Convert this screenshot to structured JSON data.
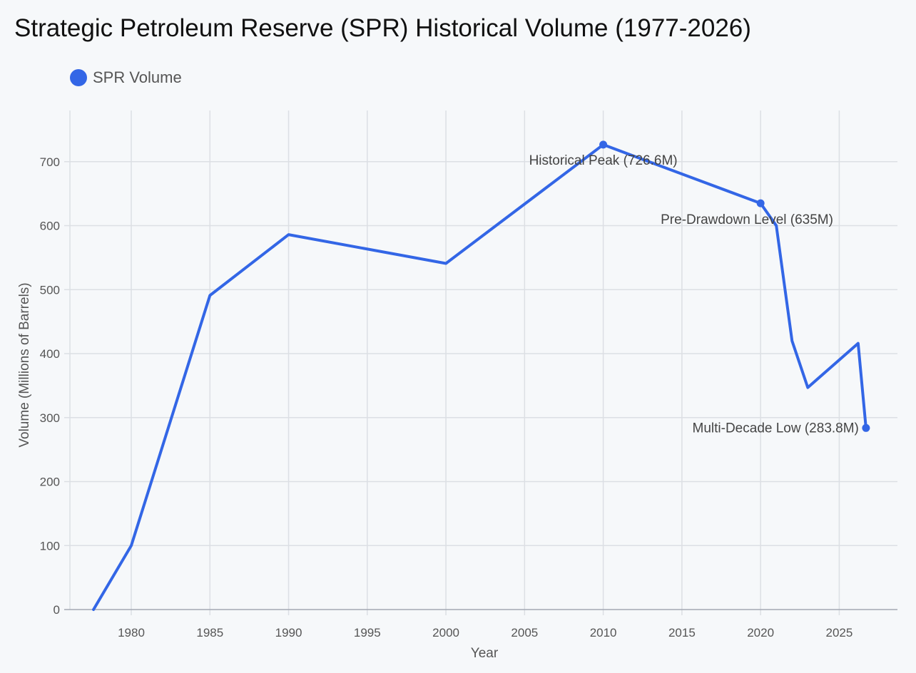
{
  "chart_data": {
    "type": "line",
    "title": "Strategic Petroleum Reserve (SPR) Historical Volume (1977-2026)",
    "xlabel": "Year",
    "ylabel": "Volume (Millions of Barrels)",
    "xlim": [
      1976.1,
      2028.7
    ],
    "ylim": [
      0,
      780
    ],
    "xticks": [
      1980,
      1985,
      1990,
      1995,
      2000,
      2005,
      2010,
      2015,
      2020,
      2025
    ],
    "yticks": [
      0,
      100,
      200,
      300,
      400,
      500,
      600,
      700
    ],
    "grid": true,
    "legend_position": "top-left",
    "series": [
      {
        "name": "SPR Volume",
        "color": "#3366e6",
        "x": [
          1977.6,
          1980,
          1985,
          1990,
          2000,
          2010,
          2020,
          2021,
          2022,
          2023,
          2026.2,
          2026.7
        ],
        "values": [
          0,
          100,
          491,
          586,
          541,
          726.6,
          635,
          600,
          420,
          347,
          416,
          283.8
        ]
      }
    ],
    "annotations": [
      {
        "x": 2010,
        "y": 726.6,
        "text": "Historical Peak (726.6M)",
        "anchor": "middle"
      },
      {
        "x": 2020,
        "y": 635,
        "text": "Pre-Drawdown Level (635M)",
        "anchor": "start"
      },
      {
        "x": 2026.7,
        "y": 283.8,
        "text": "Multi-Decade Low (283.8M)",
        "anchor": "end"
      }
    ]
  }
}
